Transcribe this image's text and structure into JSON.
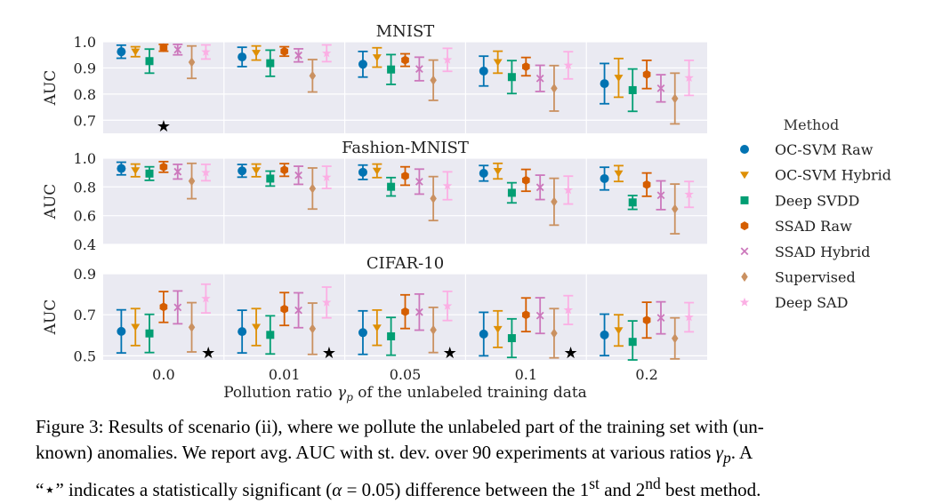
{
  "chart_data": {
    "type": "errorbar",
    "x_categories": [
      "0.0",
      "0.01",
      "0.05",
      "0.1",
      "0.2"
    ],
    "xlabel_pre": "Pollution ratio ",
    "xlabel_var": "γ",
    "xlabel_sub": "p",
    "xlabel_post": " of the unlabeled training data",
    "ylabel": "AUC",
    "legend_title": "Method",
    "colors": {
      "OC-SVM Raw": "#0173b2",
      "OC-SVM Hybrid": "#de8f05",
      "Deep SVDD": "#029e73",
      "SSAD Raw": "#d55e00",
      "SSAD Hybrid": "#cc78bc",
      "Supervised": "#ca9161",
      "Deep SAD": "#fbafe4"
    },
    "markers": {
      "OC-SVM Raw": "circle",
      "OC-SVM Hybrid": "triangle-down",
      "Deep SVDD": "square",
      "SSAD Raw": "hexagon",
      "SSAD Hybrid": "x",
      "Supervised": "diamond",
      "Deep SAD": "star"
    },
    "legend_order": [
      "OC-SVM Raw",
      "OC-SVM Hybrid",
      "Deep SVDD",
      "SSAD Raw",
      "SSAD Hybrid",
      "Supervised",
      "Deep SAD"
    ],
    "significance_marker": "★",
    "panels": [
      {
        "title": "MNIST",
        "ylim": [
          0.65,
          1.0
        ],
        "yticks": [
          1.0,
          0.9,
          0.8,
          0.7
        ],
        "ytick_labels": [
          "1.0",
          "0.9",
          "0.8",
          "0.7"
        ],
        "significant": [
          0
        ],
        "series": [
          {
            "name": "OC-SVM Raw",
            "mean": [
              0.962,
              0.942,
              0.914,
              0.888,
              0.84
            ],
            "std": [
              0.025,
              0.037,
              0.049,
              0.057,
              0.077
            ]
          },
          {
            "name": "OC-SVM Hybrid",
            "mean": [
              0.962,
              0.957,
              0.94,
              0.922,
              0.862
            ],
            "std": [
              0.019,
              0.027,
              0.037,
              0.042,
              0.074
            ]
          },
          {
            "name": "Deep SVDD",
            "mean": [
              0.926,
              0.918,
              0.894,
              0.865,
              0.815
            ],
            "std": [
              0.046,
              0.05,
              0.057,
              0.063,
              0.081
            ]
          },
          {
            "name": "SSAD Raw",
            "mean": [
              0.977,
              0.963,
              0.93,
              0.905,
              0.875
            ],
            "std": [
              0.013,
              0.018,
              0.024,
              0.035,
              0.054
            ]
          },
          {
            "name": "SSAD Hybrid",
            "mean": [
              0.97,
              0.948,
              0.896,
              0.86,
              0.822
            ],
            "std": [
              0.02,
              0.025,
              0.045,
              0.05,
              0.052
            ]
          },
          {
            "name": "Supervised",
            "mean": [
              0.922,
              0.87,
              0.853,
              0.822,
              0.783
            ],
            "std": [
              0.062,
              0.062,
              0.077,
              0.087,
              0.097
            ]
          },
          {
            "name": "Deep SAD",
            "mean": [
              0.961,
              0.956,
              0.931,
              0.91,
              0.862
            ],
            "std": [
              0.027,
              0.032,
              0.044,
              0.052,
              0.067
            ]
          }
        ]
      },
      {
        "title": "Fashion-MNIST",
        "ylim": [
          0.4,
          1.0
        ],
        "yticks": [
          1.0,
          0.8,
          0.6,
          0.4
        ],
        "ytick_labels": [
          "1.0",
          "0.8",
          "0.6",
          "0.4"
        ],
        "significant": [],
        "series": [
          {
            "name": "OC-SVM Raw",
            "mean": [
              0.928,
              0.912,
              0.902,
              0.895,
              0.858
            ],
            "std": [
              0.044,
              0.044,
              0.05,
              0.054,
              0.079
            ]
          },
          {
            "name": "OC-SVM Hybrid",
            "mean": [
              0.915,
              0.915,
              0.912,
              0.91,
              0.893
            ],
            "std": [
              0.044,
              0.044,
              0.047,
              0.054,
              0.055
            ]
          },
          {
            "name": "Deep SVDD",
            "mean": [
              0.893,
              0.858,
              0.801,
              0.759,
              0.692
            ],
            "std": [
              0.047,
              0.052,
              0.064,
              0.07,
              0.048
            ]
          },
          {
            "name": "SSAD Raw",
            "mean": [
              0.939,
              0.918,
              0.876,
              0.846,
              0.816
            ],
            "std": [
              0.037,
              0.044,
              0.064,
              0.076,
              0.081
            ]
          },
          {
            "name": "SSAD Hybrid",
            "mean": [
              0.906,
              0.881,
              0.837,
              0.797,
              0.742
            ],
            "std": [
              0.051,
              0.063,
              0.087,
              0.085,
              0.1
            ]
          },
          {
            "name": "Supervised",
            "mean": [
              0.841,
              0.789,
              0.719,
              0.697,
              0.647
            ],
            "std": [
              0.123,
              0.143,
              0.153,
              0.163,
              0.173
            ]
          },
          {
            "name": "Deep SAD",
            "mean": [
              0.9,
              0.867,
              0.808,
              0.778,
              0.748
            ],
            "std": [
              0.057,
              0.077,
              0.097,
              0.097,
              0.09
            ]
          }
        ]
      },
      {
        "title": "CIFAR-10",
        "ylim": [
          0.48,
          0.9
        ],
        "yticks": [
          0.9,
          0.7,
          0.5
        ],
        "ytick_labels": [
          "0.9",
          "0.7",
          "0.5"
        ],
        "significant": [
          0,
          1,
          2,
          3
        ],
        "series": [
          {
            "name": "OC-SVM Raw",
            "mean": [
              0.619,
              0.618,
              0.613,
              0.606,
              0.602
            ],
            "std": [
              0.105,
              0.104,
              0.106,
              0.106,
              0.101
            ]
          },
          {
            "name": "OC-SVM Hybrid",
            "mean": [
              0.64,
              0.64,
              0.637,
              0.63,
              0.624
            ],
            "std": [
              0.09,
              0.09,
              0.086,
              0.089,
              0.076
            ]
          },
          {
            "name": "Deep SVDD",
            "mean": [
              0.609,
              0.602,
              0.595,
              0.586,
              0.568
            ],
            "std": [
              0.093,
              0.093,
              0.092,
              0.094,
              0.102
            ]
          },
          {
            "name": "SSAD Raw",
            "mean": [
              0.738,
              0.728,
              0.715,
              0.7,
              0.674
            ],
            "std": [
              0.075,
              0.08,
              0.082,
              0.082,
              0.087
            ]
          },
          {
            "name": "SSAD Hybrid",
            "mean": [
              0.736,
              0.722,
              0.713,
              0.696,
              0.685
            ],
            "std": [
              0.08,
              0.085,
              0.088,
              0.087,
              0.078
            ]
          },
          {
            "name": "Supervised",
            "mean": [
              0.639,
              0.632,
              0.626,
              0.61,
              0.585
            ],
            "std": [
              0.12,
              0.125,
              0.11,
              0.12,
              0.1
            ]
          },
          {
            "name": "Deep SAD",
            "mean": [
              0.779,
              0.76,
              0.743,
              0.723,
              0.688
            ],
            "std": [
              0.07,
              0.075,
              0.071,
              0.07,
              0.071
            ]
          }
        ]
      }
    ]
  },
  "caption": {
    "label": "Figure 3:",
    "l1": " Results of scenario (ii), where we pollute the unlabeled part of the training set with (un-",
    "l2a": "known) anomalies.  We report avg. AUC with st. dev. over 90 experiments at various ratios ",
    "l2var": "γ",
    "l2sub": "p",
    "l2b": ".  A",
    "l3a": "“⋆” indicates a statistically significant (",
    "l3alpha": "α",
    "l3b": " = 0.05) difference between the 1",
    "l3sup1": "st",
    "l3c": " and 2",
    "l3sup2": "nd",
    "l3d": " best method."
  }
}
